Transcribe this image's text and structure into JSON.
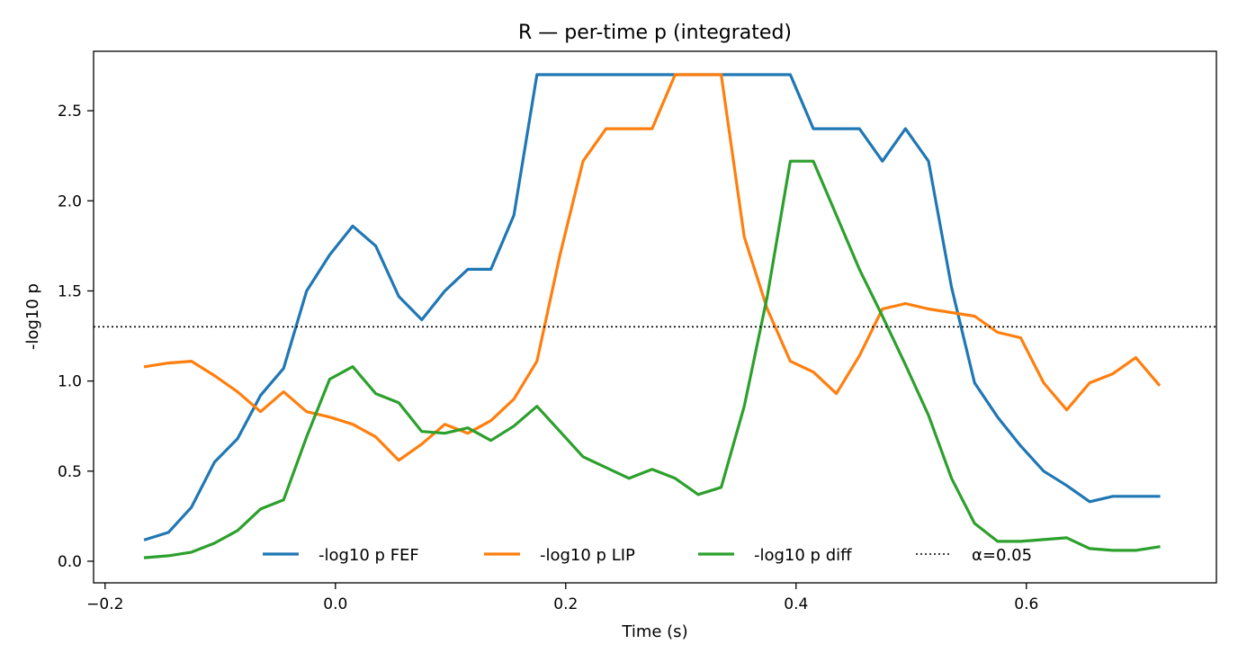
{
  "chart_data": {
    "type": "line",
    "title": "R — per-time p (integrated)",
    "xlabel": "Time (s)",
    "ylabel": "-log10 p",
    "xlim": [
      -0.21,
      0.765
    ],
    "ylim": [
      -0.12,
      2.83
    ],
    "xticks": [
      -0.2,
      0.0,
      0.2,
      0.4,
      0.6
    ],
    "xtick_labels": [
      "−0.2",
      "0.0",
      "0.2",
      "0.4",
      "0.6"
    ],
    "yticks": [
      0.0,
      0.5,
      1.0,
      1.5,
      2.0,
      2.5
    ],
    "ytick_labels": [
      "0.0",
      "0.5",
      "1.0",
      "1.5",
      "2.0",
      "2.5"
    ],
    "grid": false,
    "legend_placement": "lower-center",
    "x": [
      -0.165,
      -0.145,
      -0.125,
      -0.105,
      -0.085,
      -0.065,
      -0.045,
      -0.025,
      -0.005,
      0.015,
      0.035,
      0.055,
      0.075,
      0.095,
      0.115,
      0.135,
      0.155,
      0.175,
      0.195,
      0.215,
      0.235,
      0.255,
      0.275,
      0.295,
      0.315,
      0.335,
      0.355,
      0.375,
      0.395,
      0.415,
      0.435,
      0.455,
      0.475,
      0.495,
      0.515,
      0.535,
      0.555,
      0.575,
      0.595,
      0.615,
      0.635,
      0.655,
      0.675,
      0.695,
      0.715
    ],
    "series": [
      {
        "name": "-log10 p FEF",
        "color": "#1f77b4",
        "values": [
          0.12,
          0.16,
          0.3,
          0.55,
          0.68,
          0.92,
          1.07,
          1.5,
          1.7,
          1.86,
          1.75,
          1.47,
          1.34,
          1.5,
          1.62,
          1.62,
          1.92,
          2.7,
          2.7,
          2.7,
          2.7,
          2.7,
          2.7,
          2.7,
          2.7,
          2.7,
          2.7,
          2.7,
          2.7,
          2.4,
          2.4,
          2.4,
          2.22,
          2.4,
          2.22,
          1.52,
          0.99,
          0.8,
          0.64,
          0.5,
          0.42,
          0.33,
          0.36,
          0.36,
          0.36
        ]
      },
      {
        "name": "-log10 p LIP",
        "color": "#ff7f0e",
        "values": [
          1.08,
          1.1,
          1.11,
          1.03,
          0.94,
          0.83,
          0.94,
          0.83,
          0.8,
          0.76,
          0.69,
          0.56,
          0.65,
          0.76,
          0.71,
          0.78,
          0.9,
          1.11,
          1.7,
          2.22,
          2.4,
          2.4,
          2.4,
          2.7,
          2.7,
          2.7,
          1.8,
          1.4,
          1.11,
          1.05,
          0.93,
          1.14,
          1.4,
          1.43,
          1.4,
          1.38,
          1.36,
          1.27,
          1.24,
          0.99,
          0.84,
          0.99,
          1.04,
          1.13,
          0.98
        ]
      },
      {
        "name": "-log10 p diff",
        "color": "#2ca02c",
        "values": [
          0.02,
          0.03,
          0.05,
          0.1,
          0.17,
          0.29,
          0.34,
          0.69,
          1.01,
          1.08,
          0.93,
          0.88,
          0.72,
          0.71,
          0.74,
          0.67,
          0.75,
          0.86,
          0.72,
          0.58,
          0.52,
          0.46,
          0.51,
          0.46,
          0.37,
          0.41,
          0.86,
          1.47,
          2.22,
          2.22,
          1.92,
          1.62,
          1.36,
          1.09,
          0.81,
          0.46,
          0.21,
          0.11,
          0.11,
          0.12,
          0.13,
          0.07,
          0.06,
          0.06,
          0.08
        ]
      }
    ],
    "reference_line": {
      "name": "α=0.05",
      "y": 1.301,
      "style": "dotted",
      "color": "#000000"
    }
  }
}
